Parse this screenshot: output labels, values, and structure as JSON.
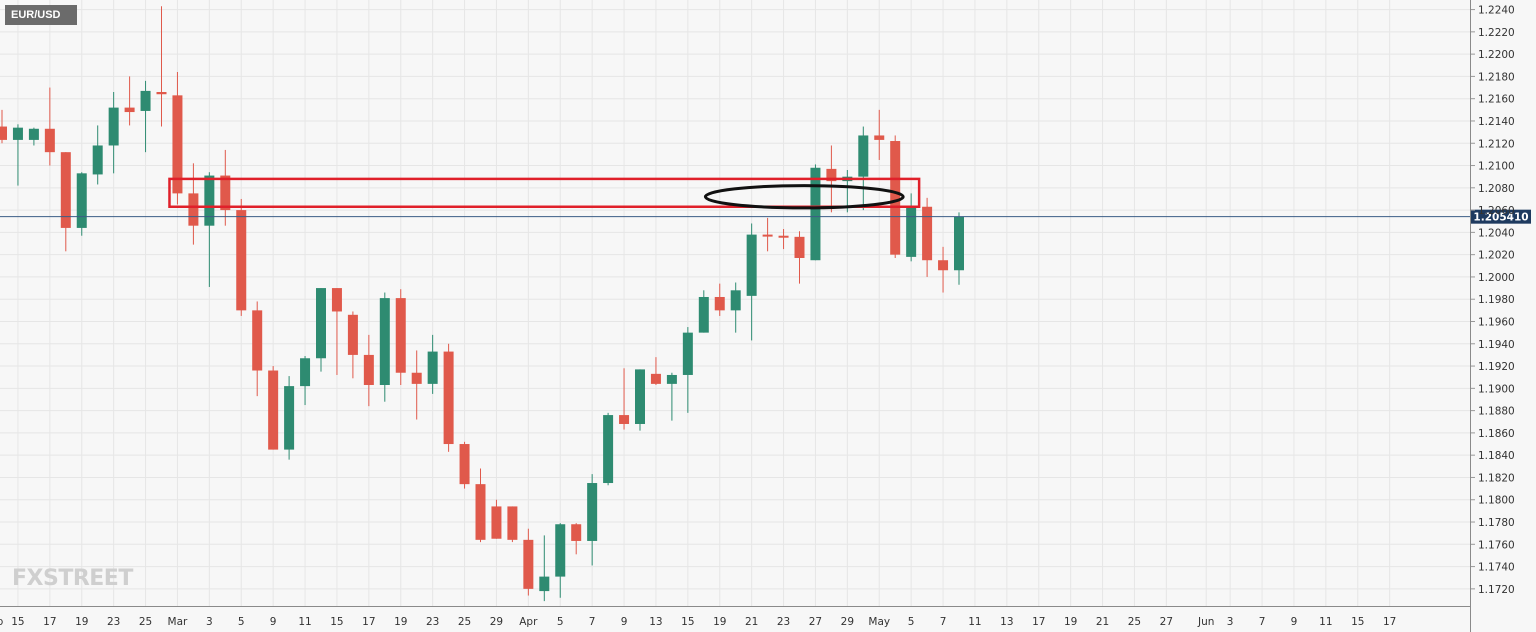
{
  "chart_data": {
    "type": "candlestick",
    "symbol": "EUR/USD",
    "current_price": "1.205410",
    "current_price_value": 1.20541,
    "watermark": "FXSTREET",
    "ylim": [
      1.171,
      1.2245
    ],
    "y_ticks": [
      "1.2240",
      "1.2220",
      "1.2200",
      "1.2180",
      "1.2160",
      "1.2140",
      "1.2120",
      "1.2100",
      "1.2080",
      "1.2060",
      "1.2040",
      "1.2020",
      "1.2000",
      "1.1980",
      "1.1960",
      "1.1940",
      "1.1920",
      "1.1900",
      "1.1880",
      "1.1860",
      "1.1840",
      "1.1820",
      "1.1800",
      "1.1780",
      "1.1760",
      "1.1740",
      "1.1720"
    ],
    "x_ticks": [
      {
        "label": "Feb",
        "slot": -0.5
      },
      {
        "label": "15",
        "slot": 1
      },
      {
        "label": "17",
        "slot": 3
      },
      {
        "label": "19",
        "slot": 5
      },
      {
        "label": "23",
        "slot": 7
      },
      {
        "label": "25",
        "slot": 9
      },
      {
        "label": "Mar",
        "slot": 11
      },
      {
        "label": "3",
        "slot": 13
      },
      {
        "label": "5",
        "slot": 15
      },
      {
        "label": "9",
        "slot": 17
      },
      {
        "label": "11",
        "slot": 19
      },
      {
        "label": "15",
        "slot": 21
      },
      {
        "label": "17",
        "slot": 23
      },
      {
        "label": "19",
        "slot": 25
      },
      {
        "label": "23",
        "slot": 27
      },
      {
        "label": "25",
        "slot": 29
      },
      {
        "label": "29",
        "slot": 31
      },
      {
        "label": "Apr",
        "slot": 33
      },
      {
        "label": "5",
        "slot": 35
      },
      {
        "label": "7",
        "slot": 37
      },
      {
        "label": "9",
        "slot": 39
      },
      {
        "label": "13",
        "slot": 41
      },
      {
        "label": "15",
        "slot": 43
      },
      {
        "label": "19",
        "slot": 45
      },
      {
        "label": "21",
        "slot": 47
      },
      {
        "label": "23",
        "slot": 49
      },
      {
        "label": "27",
        "slot": 51
      },
      {
        "label": "29",
        "slot": 53
      },
      {
        "label": "May",
        "slot": 55
      },
      {
        "label": "5",
        "slot": 57
      },
      {
        "label": "7",
        "slot": 59
      },
      {
        "label": "11",
        "slot": 61
      },
      {
        "label": "13",
        "slot": 63
      },
      {
        "label": "17",
        "slot": 65
      },
      {
        "label": "19",
        "slot": 67
      },
      {
        "label": "21",
        "slot": 69
      },
      {
        "label": "25",
        "slot": 71
      },
      {
        "label": "27",
        "slot": 73
      },
      {
        "label": "Jun",
        "slot": 75.5
      },
      {
        "label": "3",
        "slot": 77
      },
      {
        "label": "7",
        "slot": 79
      },
      {
        "label": "9",
        "slot": 81
      },
      {
        "label": "11",
        "slot": 83
      },
      {
        "label": "15",
        "slot": 85
      },
      {
        "label": "17",
        "slot": 87
      }
    ],
    "candles": [
      {
        "o": 1.2135,
        "h": 1.215,
        "l": 1.212,
        "c": 1.2123
      },
      {
        "o": 1.2123,
        "h": 1.2137,
        "l": 1.2082,
        "c": 1.2134
      },
      {
        "o": 1.2123,
        "h": 1.2134,
        "l": 1.2118,
        "c": 1.2133
      },
      {
        "o": 1.2133,
        "h": 1.217,
        "l": 1.21,
        "c": 1.2112
      },
      {
        "o": 1.2112,
        "h": 1.2112,
        "l": 1.2023,
        "c": 1.2044
      },
      {
        "o": 1.2044,
        "h": 1.2094,
        "l": 1.2037,
        "c": 1.2093
      },
      {
        "o": 1.2092,
        "h": 1.2136,
        "l": 1.2083,
        "c": 1.2118
      },
      {
        "o": 1.2118,
        "h": 1.2166,
        "l": 1.2093,
        "c": 1.2152
      },
      {
        "o": 1.2152,
        "h": 1.218,
        "l": 1.2136,
        "c": 1.2148
      },
      {
        "o": 1.2149,
        "h": 1.2176,
        "l": 1.2112,
        "c": 1.2167
      },
      {
        "o": 1.2166,
        "h": 1.2243,
        "l": 1.2135,
        "c": 1.2164
      },
      {
        "o": 1.2163,
        "h": 1.2184,
        "l": 1.2065,
        "c": 1.2075
      },
      {
        "o": 1.2075,
        "h": 1.2102,
        "l": 1.2029,
        "c": 1.2046
      },
      {
        "o": 1.2046,
        "h": 1.2094,
        "l": 1.1991,
        "c": 1.2091
      },
      {
        "o": 1.2091,
        "h": 1.2114,
        "l": 1.2046,
        "c": 1.206
      },
      {
        "o": 1.206,
        "h": 1.207,
        "l": 1.1965,
        "c": 1.197
      },
      {
        "o": 1.197,
        "h": 1.1978,
        "l": 1.1893,
        "c": 1.1916
      },
      {
        "o": 1.1916,
        "h": 1.192,
        "l": 1.1845,
        "c": 1.1845
      },
      {
        "o": 1.1845,
        "h": 1.1911,
        "l": 1.1836,
        "c": 1.1902
      },
      {
        "o": 1.1902,
        "h": 1.1929,
        "l": 1.1885,
        "c": 1.1927
      },
      {
        "o": 1.1927,
        "h": 1.199,
        "l": 1.1915,
        "c": 1.199
      },
      {
        "o": 1.199,
        "h": 1.199,
        "l": 1.1912,
        "c": 1.1969
      },
      {
        "o": 1.1966,
        "h": 1.1969,
        "l": 1.1909,
        "c": 1.193
      },
      {
        "o": 1.193,
        "h": 1.1948,
        "l": 1.1884,
        "c": 1.1903
      },
      {
        "o": 1.1903,
        "h": 1.1986,
        "l": 1.1888,
        "c": 1.1981
      },
      {
        "o": 1.1981,
        "h": 1.1989,
        "l": 1.1903,
        "c": 1.1914
      },
      {
        "o": 1.1914,
        "h": 1.1934,
        "l": 1.1872,
        "c": 1.1904
      },
      {
        "o": 1.1904,
        "h": 1.1948,
        "l": 1.1895,
        "c": 1.1933
      },
      {
        "o": 1.1933,
        "h": 1.194,
        "l": 1.1843,
        "c": 1.185
      },
      {
        "o": 1.185,
        "h": 1.1852,
        "l": 1.181,
        "c": 1.1814
      },
      {
        "o": 1.1814,
        "h": 1.1828,
        "l": 1.1762,
        "c": 1.1764
      },
      {
        "o": 1.1794,
        "h": 1.18,
        "l": 1.1765,
        "c": 1.1765
      },
      {
        "o": 1.1794,
        "h": 1.1794,
        "l": 1.1762,
        "c": 1.1764
      },
      {
        "o": 1.1764,
        "h": 1.1774,
        "l": 1.1714,
        "c": 1.172
      },
      {
        "o": 1.1718,
        "h": 1.1768,
        "l": 1.1709,
        "c": 1.1731
      },
      {
        "o": 1.1731,
        "h": 1.1779,
        "l": 1.1712,
        "c": 1.1778
      },
      {
        "o": 1.1778,
        "h": 1.1779,
        "l": 1.1751,
        "c": 1.1763
      },
      {
        "o": 1.1763,
        "h": 1.1823,
        "l": 1.1741,
        "c": 1.1815
      },
      {
        "o": 1.1815,
        "h": 1.1878,
        "l": 1.1813,
        "c": 1.1876
      },
      {
        "o": 1.1876,
        "h": 1.1918,
        "l": 1.1863,
        "c": 1.1868
      },
      {
        "o": 1.1868,
        "h": 1.1917,
        "l": 1.1862,
        "c": 1.1917
      },
      {
        "o": 1.1913,
        "h": 1.1928,
        "l": 1.1903,
        "c": 1.1904
      },
      {
        "o": 1.1904,
        "h": 1.1914,
        "l": 1.1871,
        "c": 1.1912
      },
      {
        "o": 1.1912,
        "h": 1.1955,
        "l": 1.1878,
        "c": 1.195
      },
      {
        "o": 1.195,
        "h": 1.1988,
        "l": 1.195,
        "c": 1.1982
      },
      {
        "o": 1.1982,
        "h": 1.1994,
        "l": 1.1965,
        "c": 1.197
      },
      {
        "o": 1.197,
        "h": 1.1995,
        "l": 1.195,
        "c": 1.1988
      },
      {
        "o": 1.1983,
        "h": 1.2048,
        "l": 1.1943,
        "c": 1.2038
      },
      {
        "o": 1.2038,
        "h": 1.2053,
        "l": 1.2023,
        "c": 1.2037
      },
      {
        "o": 1.2037,
        "h": 1.2043,
        "l": 1.2025,
        "c": 1.2036
      },
      {
        "o": 1.2036,
        "h": 1.2041,
        "l": 1.1994,
        "c": 1.2017
      },
      {
        "o": 1.2015,
        "h": 1.2101,
        "l": 1.2015,
        "c": 1.2098
      },
      {
        "o": 1.2097,
        "h": 1.2118,
        "l": 1.2058,
        "c": 1.2086
      },
      {
        "o": 1.2086,
        "h": 1.2096,
        "l": 1.2058,
        "c": 1.209
      },
      {
        "o": 1.209,
        "h": 1.2135,
        "l": 1.206,
        "c": 1.2127
      },
      {
        "o": 1.2127,
        "h": 1.215,
        "l": 1.2105,
        "c": 1.2123
      },
      {
        "o": 1.2122,
        "h": 1.2127,
        "l": 1.2017,
        "c": 1.202
      },
      {
        "o": 1.2018,
        "h": 1.2075,
        "l": 1.2014,
        "c": 1.2063
      },
      {
        "o": 1.2063,
        "h": 1.2071,
        "l": 1.2,
        "c": 1.2015
      },
      {
        "o": 1.2015,
        "h": 1.2027,
        "l": 1.1986,
        "c": 1.2006
      },
      {
        "o": 1.2006,
        "h": 1.2058,
        "l": 1.1993,
        "c": 1.2054
      }
    ],
    "annotations": {
      "zone": {
        "y_top": 1.2088,
        "y_bottom": 1.2063,
        "from_slot": 10.5,
        "to_slot": 57.5
      },
      "ellipse": {
        "y_center": 1.2072,
        "y_half_range": 0.001,
        "center_slot": 50.3,
        "half_width_slots": 6.2
      }
    }
  },
  "colors": {
    "up": "#2e8b71",
    "down": "#e0594b",
    "grid": "#e6e6e6",
    "axis_text": "#333333",
    "price_line": "#3b5d86",
    "price_badge": "#1e3a5f",
    "symbol_badge_bg": "#6b6b6b",
    "zone": "#e0202a",
    "ellipse": "#111111",
    "watermark": "#cfcfcf"
  }
}
